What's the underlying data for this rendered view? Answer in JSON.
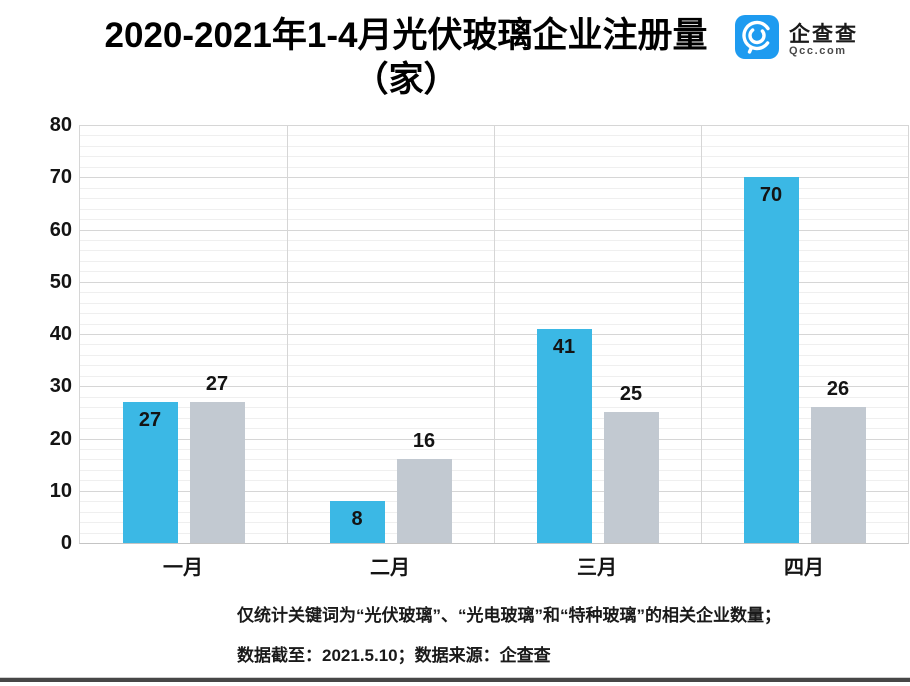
{
  "title": {
    "line1": "2020-2021年1-4月光伏玻璃企业注册量",
    "line2": "（家）"
  },
  "logo": {
    "name": "企查查",
    "domain": "Qcc.com",
    "badge_color": "#1e9bf0"
  },
  "chart_data": {
    "type": "bar",
    "title": "2020-2021年1-4月光伏玻璃企业注册量（家）",
    "categories": [
      "一月",
      "二月",
      "三月",
      "四月"
    ],
    "series": [
      {
        "name": "series-blue",
        "color": "#3bb8e5",
        "values": [
          27,
          8,
          41,
          70
        ],
        "label_position": "inside"
      },
      {
        "name": "series-gray",
        "color": "#c2c9d1",
        "values": [
          27,
          16,
          25,
          26
        ],
        "label_position": "above"
      }
    ],
    "xlabel": "",
    "ylabel": "",
    "ylim": [
      0,
      80
    ],
    "y_major_step": 10,
    "y_minor_step": 2,
    "grid": true,
    "legend_position": "none"
  },
  "footnote": {
    "line1": "仅统计关键词为“光伏玻璃”、“光电玻璃”和“特种玻璃”的相关企业数量；",
    "line2": "数据截至：2021.5.10；数据来源：企查查"
  }
}
